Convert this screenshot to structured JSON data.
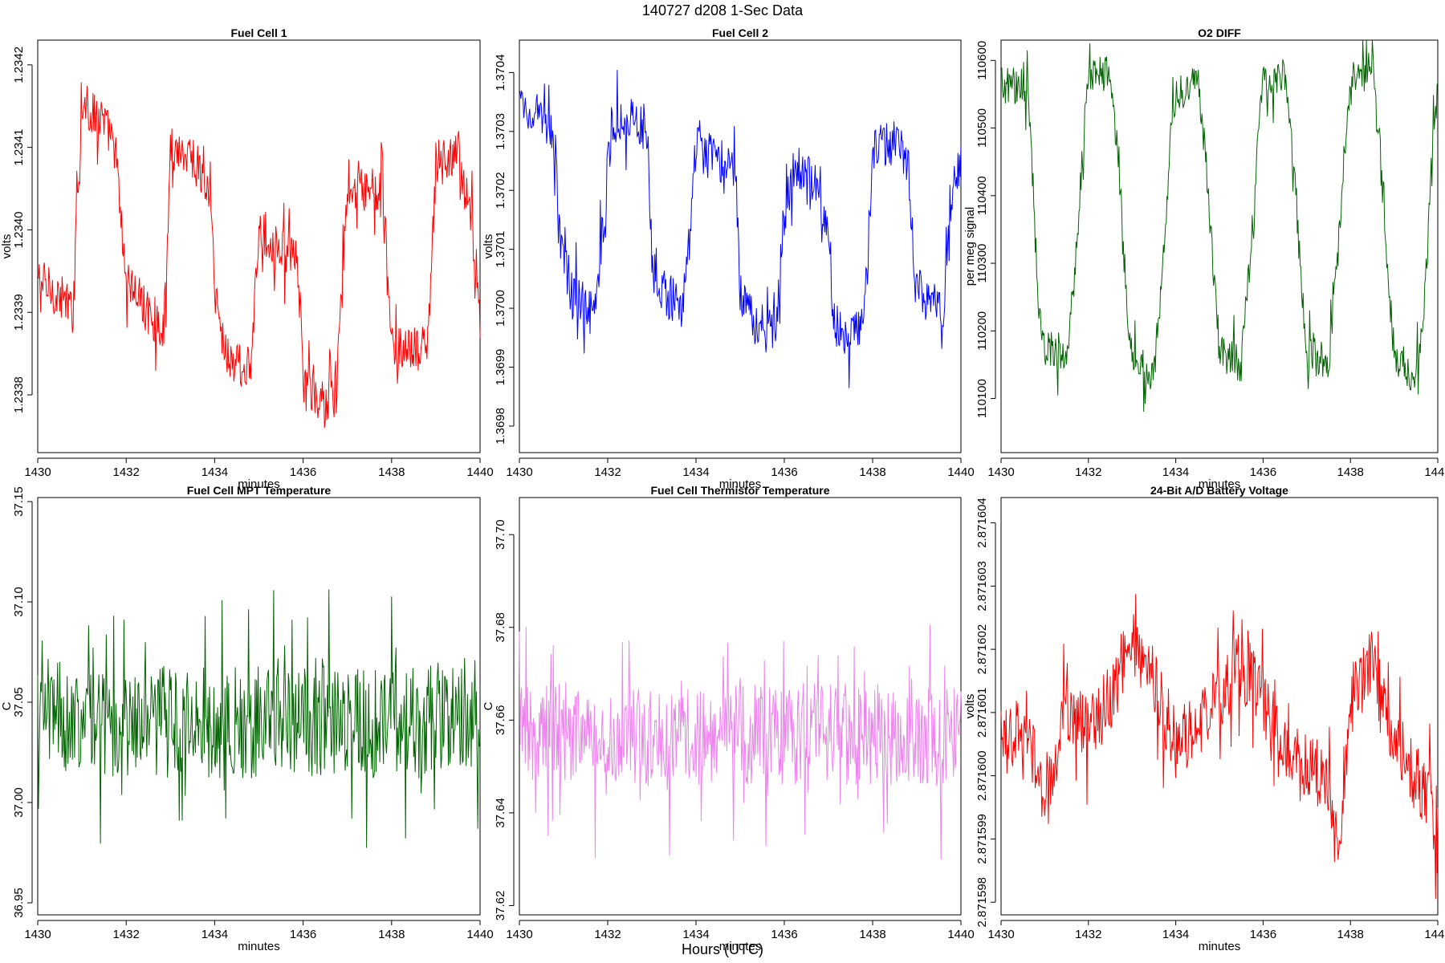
{
  "page": {
    "title": "140727   d208   1-Sec Data",
    "xlabel": "Hours (UTC)"
  },
  "chart_data": [
    {
      "type": "line",
      "title": "Fuel Cell 1",
      "xlabel": "minutes",
      "ylabel": "volts",
      "color": "#ff0000",
      "xlim": [
        1430,
        1440
      ],
      "ylim": [
        1.23373,
        1.23423
      ],
      "xticks": [
        1430,
        1432,
        1434,
        1436,
        1438,
        1440
      ],
      "yticks": [
        1.2338,
        1.2339,
        1.234,
        1.2341,
        1.2342
      ],
      "ytick_labels": [
        "1.2338",
        "1.2339",
        "1.2340",
        "1.2341",
        "1.2342"
      ],
      "noise": 2.8e-05,
      "x": [
        1430.0,
        1430.5,
        1430.8,
        1430.85,
        1431.0,
        1431.5,
        1431.75,
        1431.9,
        1432.0,
        1432.5,
        1432.85,
        1432.95,
        1433.0,
        1433.5,
        1433.9,
        1434.0,
        1434.2,
        1434.4,
        1434.8,
        1434.9,
        1435.0,
        1435.5,
        1435.85,
        1435.95,
        1436.0,
        1436.2,
        1436.4,
        1436.75,
        1436.9,
        1437.0,
        1437.5,
        1437.8,
        1437.95,
        1438.0,
        1438.5,
        1438.8,
        1438.95,
        1439.0,
        1439.5,
        1439.85,
        1440.0
      ],
      "y": [
        1.23394,
        1.23392,
        1.2339,
        1.234,
        1.23415,
        1.23413,
        1.2341,
        1.234,
        1.23394,
        1.2339,
        1.23388,
        1.234,
        1.2341,
        1.23409,
        1.23404,
        1.23393,
        1.23386,
        1.23384,
        1.23383,
        1.2339,
        1.234,
        1.23398,
        1.23396,
        1.2339,
        1.23381,
        1.2338,
        1.23379,
        1.2338,
        1.23395,
        1.23404,
        1.23405,
        1.23404,
        1.2339,
        1.23386,
        1.23385,
        1.23386,
        1.234,
        1.23408,
        1.23409,
        1.234,
        1.23389
      ]
    },
    {
      "type": "line",
      "title": "Fuel Cell 2",
      "xlabel": "minutes",
      "ylabel": "volts",
      "color": "#0000ff",
      "xlim": [
        1430,
        1440
      ],
      "ylim": [
        1.369755,
        1.370455
      ],
      "xticks": [
        1430,
        1432,
        1434,
        1436,
        1438,
        1440
      ],
      "yticks": [
        1.3698,
        1.3699,
        1.37,
        1.3701,
        1.3702,
        1.3703,
        1.3704
      ],
      "ytick_labels": [
        "1.3698",
        "1.3699",
        "1.3700",
        "1.3701",
        "1.3702",
        "1.3703",
        "1.3704"
      ],
      "noise": 4e-05,
      "x": [
        1430.0,
        1430.5,
        1430.8,
        1430.95,
        1431.2,
        1431.7,
        1431.9,
        1432.1,
        1432.5,
        1432.9,
        1433.0,
        1433.2,
        1433.7,
        1433.85,
        1434.0,
        1434.5,
        1434.9,
        1435.0,
        1435.3,
        1435.8,
        1435.95,
        1436.2,
        1436.6,
        1437.0,
        1437.1,
        1437.3,
        1437.8,
        1437.9,
        1438.0,
        1438.5,
        1438.8,
        1438.95,
        1439.2,
        1439.6,
        1439.75,
        1440.0
      ],
      "y": [
        1.37035,
        1.37032,
        1.37028,
        1.3701,
        1.37002,
        1.37,
        1.37015,
        1.37032,
        1.37032,
        1.3703,
        1.3701,
        1.37003,
        1.37,
        1.37012,
        1.37027,
        1.37025,
        1.37022,
        1.37003,
        1.36998,
        1.36996,
        1.37012,
        1.37024,
        1.37022,
        1.37015,
        1.36998,
        1.36995,
        1.36997,
        1.3701,
        1.37027,
        1.37028,
        1.37025,
        1.37005,
        1.37002,
        1.37,
        1.37018,
        1.37025
      ]
    },
    {
      "type": "line",
      "title": "O2 DIFF",
      "xlabel": "minutes",
      "ylabel": "per meg signal",
      "color": "#006400",
      "xlim": [
        1430,
        1440
      ],
      "ylim": [
        110020,
        110630
      ],
      "xticks": [
        1430,
        1432,
        1434,
        1436,
        1438,
        1440
      ],
      "yticks": [
        110100,
        110200,
        110300,
        110400,
        110500,
        110600
      ],
      "ytick_labels": [
        "110100",
        "110200",
        "110300",
        "110400",
        "110500",
        "110600"
      ],
      "noise": 28,
      "x": [
        1430.0,
        1430.6,
        1430.7,
        1430.85,
        1431.0,
        1431.5,
        1431.7,
        1431.9,
        1432.0,
        1432.5,
        1432.7,
        1432.85,
        1433.0,
        1433.5,
        1433.7,
        1433.9,
        1434.0,
        1434.5,
        1434.7,
        1434.9,
        1435.0,
        1435.5,
        1435.7,
        1435.9,
        1436.0,
        1436.5,
        1436.7,
        1436.9,
        1437.0,
        1437.5,
        1437.7,
        1437.9,
        1438.0,
        1438.5,
        1438.7,
        1438.9,
        1439.0,
        1439.5,
        1439.7,
        1439.85,
        1440.0
      ],
      "y": [
        110565,
        110560,
        110450,
        110250,
        110180,
        110160,
        110300,
        110500,
        110575,
        110580,
        110450,
        110250,
        110160,
        110135,
        110300,
        110500,
        110555,
        110565,
        110450,
        110250,
        110170,
        110150,
        110300,
        110500,
        110565,
        110575,
        110450,
        110250,
        110165,
        110155,
        110300,
        110500,
        110575,
        110585,
        110450,
        110250,
        110165,
        110130,
        110250,
        110450,
        110565
      ]
    },
    {
      "type": "line",
      "title": "Fuel Cell MPT Temperature",
      "xlabel": "minutes",
      "ylabel": "C",
      "color": "#006400",
      "xlim": [
        1430,
        1440
      ],
      "ylim": [
        36.944,
        37.152
      ],
      "xticks": [
        1430,
        1432,
        1434,
        1436,
        1438,
        1440
      ],
      "yticks": [
        36.95,
        37.0,
        37.05,
        37.1,
        37.15
      ],
      "ytick_labels": [
        "36.95",
        "37.00",
        "37.05",
        "37.10",
        "37.15"
      ],
      "noise": 0.028,
      "x": [
        1430.0,
        1432.0,
        1434.0,
        1436.0,
        1438.0,
        1440.0
      ],
      "y": [
        37.045,
        37.04,
        37.04,
        37.04,
        37.04,
        37.045
      ]
    },
    {
      "type": "line",
      "title": "Fuel Cell Thermistor Temperature",
      "xlabel": "minutes",
      "ylabel": "C",
      "color": "#ee82ee",
      "xlim": [
        1430,
        1440
      ],
      "ylim": [
        37.618,
        37.708
      ],
      "xticks": [
        1430,
        1432,
        1434,
        1436,
        1438,
        1440
      ],
      "yticks": [
        37.62,
        37.64,
        37.66,
        37.68,
        37.7
      ],
      "ytick_labels": [
        "37.62",
        "37.64",
        "37.66",
        "37.68",
        "37.70"
      ],
      "noise": 0.011,
      "x": [
        1430.0,
        1432.0,
        1434.0,
        1436.0,
        1438.0,
        1440.0
      ],
      "y": [
        37.658,
        37.656,
        37.657,
        37.657,
        37.657,
        37.656
      ]
    },
    {
      "type": "line",
      "title": "24-Bit A/D Battery Voltage",
      "xlabel": "minutes",
      "ylabel": "volts",
      "color": "#ff0000",
      "xlim": [
        1430,
        1440
      ],
      "ylim": [
        2.8715978,
        2.8716044
      ],
      "xticks": [
        1430,
        1432,
        1434,
        1436,
        1438,
        1440
      ],
      "yticks": [
        2.871598,
        2.871599,
        2.8716,
        2.871601,
        2.871602,
        2.871603,
        2.871604
      ],
      "ytick_labels": [
        "2.871598",
        "2.871599",
        "2.871600",
        "2.871601",
        "2.871602",
        "2.871603",
        "2.871604"
      ],
      "noise": 5.5e-07,
      "x": [
        1430.0,
        1430.5,
        1431.0,
        1431.5,
        1432.0,
        1432.5,
        1433.0,
        1433.5,
        1434.0,
        1434.5,
        1435.0,
        1435.5,
        1436.0,
        1436.5,
        1437.0,
        1437.5,
        1437.7,
        1438.0,
        1438.5,
        1439.0,
        1439.5,
        1440.0
      ],
      "y": [
        2.8716005,
        2.8716008,
        2.8715997,
        2.871601,
        2.8716008,
        2.8716012,
        2.8716022,
        2.8716015,
        2.8716005,
        2.8716008,
        2.8716012,
        2.8716018,
        2.8716012,
        2.8716005,
        2.8716002,
        2.8715998,
        2.8715988,
        2.8716012,
        2.8716018,
        2.8716005,
        2.8716,
        2.8715993
      ]
    }
  ]
}
